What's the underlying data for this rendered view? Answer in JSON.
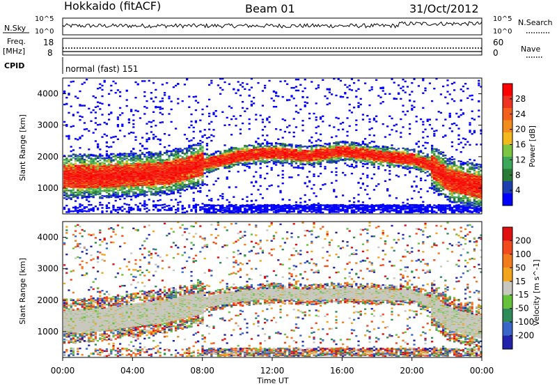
{
  "header": {
    "station": "Hokkaido (fitACF)",
    "beam": "Beam 01",
    "date": "31/Oct/2012"
  },
  "side_labels": {
    "nsky": "N.Sky",
    "nsearch": "N.Search",
    "freq_top": "Freq.",
    "freq_unit": "[MHz]",
    "nave": "Nave",
    "cpid": "CPID",
    "exp_10": "10^5",
    "exp_0": "10^0"
  },
  "cpid_text": "normal (fast) 151",
  "freq_ticks": [
    "18",
    "8"
  ],
  "nave_ticks": [
    "60",
    "0"
  ],
  "x_axis": {
    "label": "Time UT",
    "ticks": [
      "00:00",
      "04:00",
      "08:00",
      "12:00",
      "16:00",
      "20:00",
      "00:00"
    ]
  },
  "chart_data": [
    {
      "type": "heatmap",
      "name": "power",
      "ylabel": "Slant Range [km]",
      "yticks": [
        1000,
        2000,
        3000,
        4000
      ],
      "ylim": [
        180,
        4500
      ],
      "xlim_hours": [
        0,
        24
      ],
      "colorbar": {
        "label": "Power [dB]",
        "ticks": [
          "28",
          "24",
          "20",
          "16",
          "12",
          "8",
          "4"
        ],
        "colors": [
          "#0000ff",
          "#1e3fb0",
          "#2a7a3a",
          "#3ca85a",
          "#7cc441",
          "#f2b81c",
          "#f28c1c",
          "#f2601c",
          "#ee3322",
          "#ff0000"
        ]
      },
      "band_center_km": [
        [
          0,
          1350
        ],
        [
          2,
          1350
        ],
        [
          4,
          1400
        ],
        [
          6,
          1450
        ],
        [
          8,
          1750
        ],
        [
          9,
          1850
        ],
        [
          10,
          2000
        ],
        [
          12,
          2100
        ],
        [
          14,
          2000
        ],
        [
          16,
          2150
        ],
        [
          18,
          2000
        ],
        [
          20,
          1900
        ],
        [
          21,
          1700
        ],
        [
          22,
          1250
        ],
        [
          24,
          1000
        ]
      ]
    },
    {
      "type": "heatmap",
      "name": "velocity",
      "ylabel": "Slant Range [km]",
      "yticks": [
        1000,
        2000,
        3000,
        4000
      ],
      "ylim": [
        180,
        4500
      ],
      "xlim_hours": [
        0,
        24
      ],
      "colorbar": {
        "label": "Velocity [m s^-1]",
        "ticks": [
          "200",
          "100",
          "50",
          "15",
          "-15",
          "-50",
          "-100",
          "-200"
        ],
        "colors": [
          "#2222aa",
          "#3b66c9",
          "#2e8b57",
          "#66c23a",
          "#c8c8be",
          "#f2a51c",
          "#f27c1c",
          "#f24a1c",
          "#e01010"
        ]
      },
      "band_center_km": [
        [
          0,
          1300
        ],
        [
          2,
          1350
        ],
        [
          4,
          1500
        ],
        [
          6,
          1650
        ],
        [
          8,
          1900
        ],
        [
          10,
          2100
        ],
        [
          12,
          2200
        ],
        [
          14,
          2150
        ],
        [
          16,
          2200
        ],
        [
          18,
          2150
        ],
        [
          20,
          2150
        ],
        [
          21,
          1900
        ],
        [
          22,
          1400
        ],
        [
          24,
          1100
        ]
      ]
    }
  ]
}
